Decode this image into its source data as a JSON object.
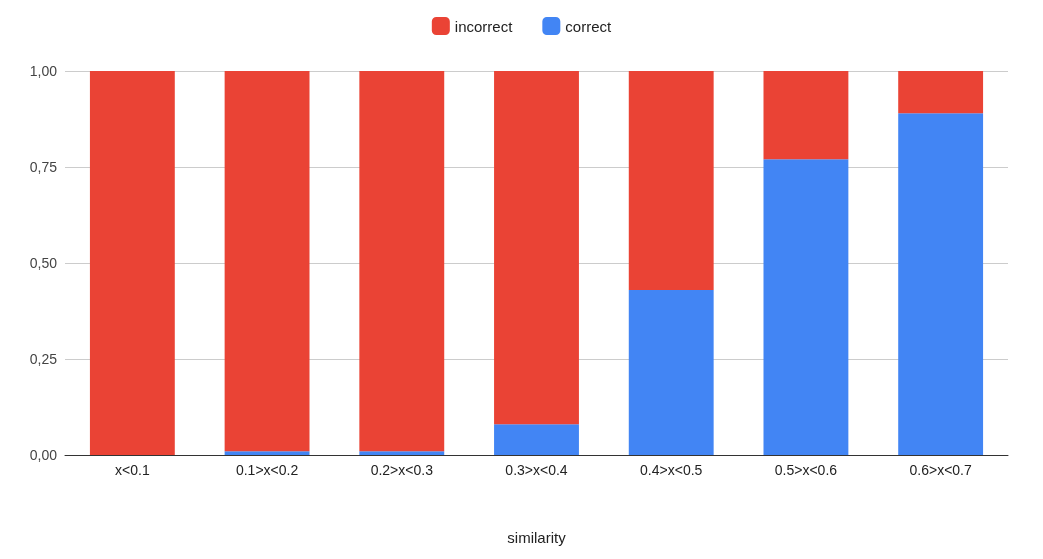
{
  "chart_data": {
    "type": "bar",
    "stacked": true,
    "xlabel": "similarity",
    "categories": [
      "x<0.1",
      "0.1>x<0.2",
      "0.2>x<0.3",
      "0.3>x<0.4",
      "0.4>x<0.5",
      "0.5>x<0.6",
      "0.6>x<0.7"
    ],
    "series": [
      {
        "name": "correct",
        "color": "#4285f4",
        "values": [
          0,
          0.01,
          0.01,
          0.08,
          0.43,
          0.77,
          0.89
        ]
      },
      {
        "name": "incorrect",
        "color": "#ea4335",
        "values": [
          1,
          0.99,
          0.99,
          0.92,
          0.57,
          0.23,
          0.11
        ]
      }
    ],
    "ylim": [
      0,
      1
    ],
    "yticks": [
      {
        "value": 0,
        "label": "0,00"
      },
      {
        "value": 0.25,
        "label": "0,25"
      },
      {
        "value": 0.5,
        "label": "0,50"
      },
      {
        "value": 0.75,
        "label": "0,75"
      },
      {
        "value": 1,
        "label": "1,00"
      }
    ],
    "grid": "y",
    "legend": "top"
  }
}
